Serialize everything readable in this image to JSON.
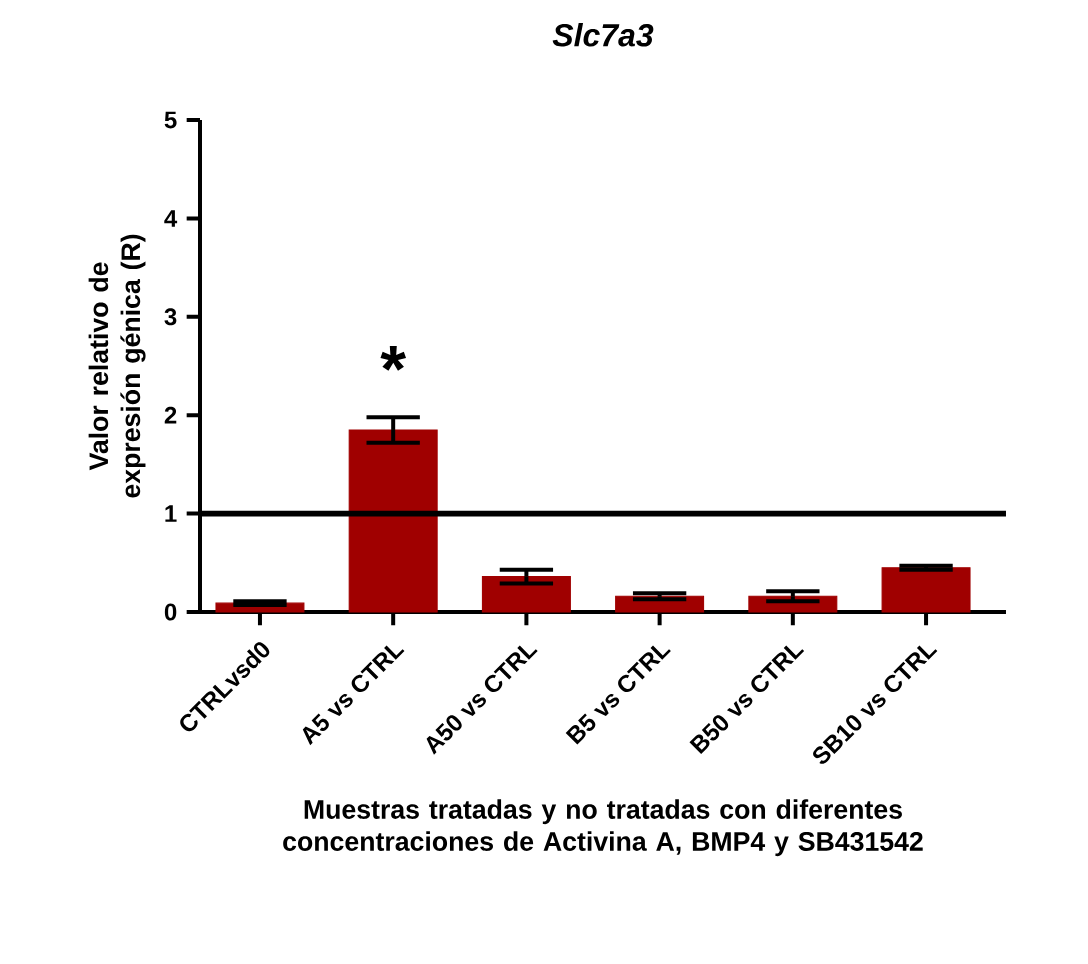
{
  "chart_data": {
    "type": "bar",
    "title": "*Slc7a3*",
    "xlabel": "Muestras tratadas y no tratadas con diferentes concentraciones de Activina A, BMP4 y SB431542",
    "ylabel": "Valor relativo de expresión génica (R)",
    "categories": [
      "CTRLvsd0",
      "A5 vs CTRL",
      "A50 vs CTRL",
      "B5 vs CTRL",
      "B50 vs CTRL",
      "SB10 vs CTRL"
    ],
    "values": [
      0.09,
      1.85,
      0.36,
      0.16,
      0.16,
      0.45
    ],
    "errors": [
      0.02,
      0.13,
      0.07,
      0.03,
      0.05,
      0.02
    ],
    "color": "#a00000",
    "ylim": [
      0,
      5
    ],
    "yticks": [
      0,
      1,
      2,
      3,
      4,
      5
    ],
    "ref_lines": [
      {
        "axis": "y",
        "value": 1,
        "color": "#000000"
      }
    ],
    "annotations": [
      "*"
    ],
    "grid": false
  }
}
